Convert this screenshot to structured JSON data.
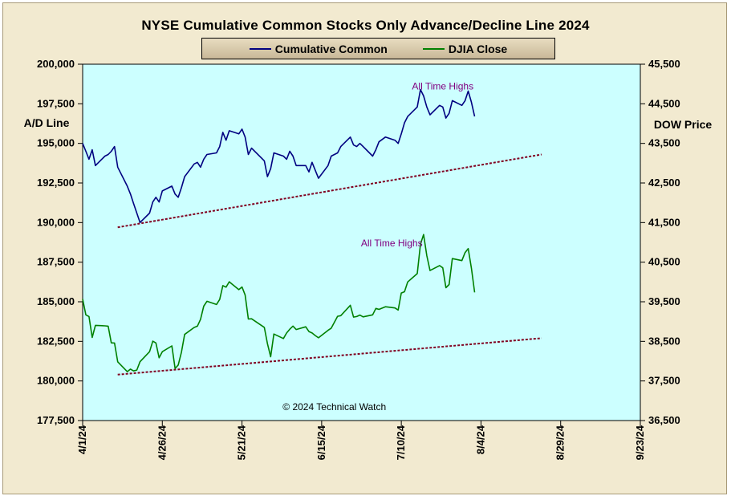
{
  "chart_data": {
    "type": "line",
    "title": "NYSE Cumulative  Common Stocks Only Advance/Decline  Line 2024",
    "ylabel_left": "A/D Line",
    "ylabel_right": "DOW Price",
    "left_axis": {
      "min": 177500,
      "max": 200000,
      "ticks": [
        "177,500",
        "180,000",
        "182,500",
        "185,000",
        "187,500",
        "190,000",
        "192,500",
        "195,000",
        "197,500",
        "200,000"
      ]
    },
    "right_axis": {
      "min": 36500,
      "max": 45500,
      "ticks": [
        "36,500",
        "37,500",
        "38,500",
        "39,500",
        "40,500",
        "41,500",
        "42,500",
        "43,500",
        "44,500",
        "45,500"
      ]
    },
    "x_axis": {
      "start": "2024-04-01",
      "end": "2024-09-23",
      "ticks": [
        "4/1/24",
        "4/26/24",
        "5/21/24",
        "6/15/24",
        "7/10/24",
        "8/4/24",
        "8/29/24",
        "9/23/24"
      ]
    },
    "series": [
      {
        "name": "Cumulative Common",
        "axis": "left",
        "color": "#000080",
        "points": [
          [
            "2024-04-01",
            195000
          ],
          [
            "2024-04-02",
            194500
          ],
          [
            "2024-04-03",
            194000
          ],
          [
            "2024-04-04",
            194600
          ],
          [
            "2024-04-05",
            193600
          ],
          [
            "2024-04-08",
            194200
          ],
          [
            "2024-04-09",
            194300
          ],
          [
            "2024-04-10",
            194500
          ],
          [
            "2024-04-11",
            194800
          ],
          [
            "2024-04-12",
            193500
          ],
          [
            "2024-04-15",
            192300
          ],
          [
            "2024-04-16",
            191800
          ],
          [
            "2024-04-17",
            191200
          ],
          [
            "2024-04-18",
            190600
          ],
          [
            "2024-04-19",
            190000
          ],
          [
            "2024-04-22",
            190600
          ],
          [
            "2024-04-23",
            191300
          ],
          [
            "2024-04-24",
            191600
          ],
          [
            "2024-04-25",
            191300
          ],
          [
            "2024-04-26",
            192000
          ],
          [
            "2024-04-29",
            192300
          ],
          [
            "2024-04-30",
            191800
          ],
          [
            "2024-05-01",
            191600
          ],
          [
            "2024-05-02",
            192200
          ],
          [
            "2024-05-03",
            192900
          ],
          [
            "2024-05-06",
            193700
          ],
          [
            "2024-05-07",
            193800
          ],
          [
            "2024-05-08",
            193500
          ],
          [
            "2024-05-09",
            194000
          ],
          [
            "2024-05-10",
            194300
          ],
          [
            "2024-05-13",
            194400
          ],
          [
            "2024-05-14",
            194800
          ],
          [
            "2024-05-15",
            195700
          ],
          [
            "2024-05-16",
            195200
          ],
          [
            "2024-05-17",
            195800
          ],
          [
            "2024-05-20",
            195600
          ],
          [
            "2024-05-21",
            195900
          ],
          [
            "2024-05-22",
            195400
          ],
          [
            "2024-05-23",
            194300
          ],
          [
            "2024-05-24",
            194700
          ],
          [
            "2024-05-28",
            193900
          ],
          [
            "2024-05-29",
            192900
          ],
          [
            "2024-05-30",
            193400
          ],
          [
            "2024-05-31",
            194400
          ],
          [
            "2024-06-03",
            194200
          ],
          [
            "2024-06-04",
            194000
          ],
          [
            "2024-06-05",
            194500
          ],
          [
            "2024-06-06",
            194200
          ],
          [
            "2024-06-07",
            193600
          ],
          [
            "2024-06-10",
            193600
          ],
          [
            "2024-06-11",
            193200
          ],
          [
            "2024-06-12",
            193800
          ],
          [
            "2024-06-13",
            193300
          ],
          [
            "2024-06-14",
            192800
          ],
          [
            "2024-06-17",
            193600
          ],
          [
            "2024-06-18",
            194200
          ],
          [
            "2024-06-20",
            194400
          ],
          [
            "2024-06-21",
            194800
          ],
          [
            "2024-06-24",
            195400
          ],
          [
            "2024-06-25",
            194900
          ],
          [
            "2024-06-26",
            194800
          ],
          [
            "2024-06-27",
            195000
          ],
          [
            "2024-06-28",
            194800
          ],
          [
            "2024-07-01",
            194200
          ],
          [
            "2024-07-02",
            194600
          ],
          [
            "2024-07-03",
            195100
          ],
          [
            "2024-07-05",
            195400
          ],
          [
            "2024-07-08",
            195200
          ],
          [
            "2024-07-09",
            195000
          ],
          [
            "2024-07-10",
            195600
          ],
          [
            "2024-07-11",
            196300
          ],
          [
            "2024-07-12",
            196700
          ],
          [
            "2024-07-15",
            197300
          ],
          [
            "2024-07-16",
            198400
          ],
          [
            "2024-07-17",
            198000
          ],
          [
            "2024-07-18",
            197300
          ],
          [
            "2024-07-19",
            196800
          ],
          [
            "2024-07-22",
            197400
          ],
          [
            "2024-07-23",
            197300
          ],
          [
            "2024-07-24",
            196600
          ],
          [
            "2024-07-25",
            196900
          ],
          [
            "2024-07-26",
            197700
          ],
          [
            "2024-07-29",
            197400
          ],
          [
            "2024-07-30",
            197700
          ],
          [
            "2024-07-31",
            198300
          ],
          [
            "2024-08-01",
            197600
          ],
          [
            "2024-08-02",
            196700
          ]
        ]
      },
      {
        "name": "DJIA Close",
        "axis": "right",
        "color": "#008000",
        "points": [
          [
            "2024-04-01",
            39567
          ],
          [
            "2024-04-02",
            39170
          ],
          [
            "2024-04-03",
            39127
          ],
          [
            "2024-04-04",
            38597
          ],
          [
            "2024-04-05",
            38904
          ],
          [
            "2024-04-08",
            38892
          ],
          [
            "2024-04-09",
            38884
          ],
          [
            "2024-04-10",
            38462
          ],
          [
            "2024-04-11",
            38459
          ],
          [
            "2024-04-12",
            37983
          ],
          [
            "2024-04-15",
            37735
          ],
          [
            "2024-04-16",
            37799
          ],
          [
            "2024-04-17",
            37753
          ],
          [
            "2024-04-18",
            37775
          ],
          [
            "2024-04-19",
            37986
          ],
          [
            "2024-04-22",
            38240
          ],
          [
            "2024-04-23",
            38504
          ],
          [
            "2024-04-24",
            38461
          ],
          [
            "2024-04-25",
            38086
          ],
          [
            "2024-04-26",
            38240
          ],
          [
            "2024-04-29",
            38386
          ],
          [
            "2024-04-30",
            37816
          ],
          [
            "2024-05-01",
            37903
          ],
          [
            "2024-05-02",
            38226
          ],
          [
            "2024-05-03",
            38676
          ],
          [
            "2024-05-06",
            38852
          ],
          [
            "2024-05-07",
            38884
          ],
          [
            "2024-05-08",
            39056
          ],
          [
            "2024-05-09",
            39388
          ],
          [
            "2024-05-10",
            39513
          ],
          [
            "2024-05-13",
            39432
          ],
          [
            "2024-05-14",
            39558
          ],
          [
            "2024-05-15",
            39908
          ],
          [
            "2024-05-16",
            39869
          ],
          [
            "2024-05-17",
            40004
          ],
          [
            "2024-05-20",
            39807
          ],
          [
            "2024-05-21",
            39873
          ],
          [
            "2024-05-22",
            39671
          ],
          [
            "2024-05-23",
            39065
          ],
          [
            "2024-05-24",
            39070
          ],
          [
            "2024-05-28",
            38853
          ],
          [
            "2024-05-29",
            38442
          ],
          [
            "2024-05-30",
            38112
          ],
          [
            "2024-05-31",
            38686
          ],
          [
            "2024-06-03",
            38571
          ],
          [
            "2024-06-04",
            38711
          ],
          [
            "2024-06-05",
            38807
          ],
          [
            "2024-06-06",
            38886
          ],
          [
            "2024-06-07",
            38799
          ],
          [
            "2024-06-10",
            38868
          ],
          [
            "2024-06-11",
            38747
          ],
          [
            "2024-06-12",
            38712
          ],
          [
            "2024-06-13",
            38647
          ],
          [
            "2024-06-14",
            38589
          ],
          [
            "2024-06-17",
            38778
          ],
          [
            "2024-06-18",
            38834
          ],
          [
            "2024-06-20",
            39134
          ],
          [
            "2024-06-21",
            39150
          ],
          [
            "2024-06-24",
            39411
          ],
          [
            "2024-06-25",
            39112
          ],
          [
            "2024-06-26",
            39127
          ],
          [
            "2024-06-27",
            39164
          ],
          [
            "2024-06-28",
            39118
          ],
          [
            "2024-07-01",
            39169
          ],
          [
            "2024-07-02",
            39331
          ],
          [
            "2024-07-03",
            39308
          ],
          [
            "2024-07-05",
            39375
          ],
          [
            "2024-07-08",
            39344
          ],
          [
            "2024-07-09",
            39291
          ],
          [
            "2024-07-10",
            39721
          ],
          [
            "2024-07-11",
            39753
          ],
          [
            "2024-07-12",
            40001
          ],
          [
            "2024-07-15",
            40212
          ],
          [
            "2024-07-16",
            40954
          ],
          [
            "2024-07-17",
            41198
          ],
          [
            "2024-07-18",
            40665
          ],
          [
            "2024-07-19",
            40288
          ],
          [
            "2024-07-22",
            40415
          ],
          [
            "2024-07-23",
            40358
          ],
          [
            "2024-07-24",
            39854
          ],
          [
            "2024-07-25",
            39935
          ],
          [
            "2024-07-26",
            40590
          ],
          [
            "2024-07-29",
            40540
          ],
          [
            "2024-07-30",
            40743
          ],
          [
            "2024-07-31",
            40843
          ],
          [
            "2024-08-01",
            40348
          ],
          [
            "2024-08-02",
            39737
          ]
        ]
      }
    ],
    "trendlines": [
      {
        "axis": "left",
        "color": "#800020",
        "start": [
          "2024-04-12",
          189700
        ],
        "end": [
          "2024-08-23",
          194300
        ]
      },
      {
        "axis": "left",
        "color": "#800020",
        "start": [
          "2024-04-12",
          180400
        ],
        "end": [
          "2024-08-23",
          182700
        ]
      }
    ],
    "annotations": [
      {
        "text": "All Time Highs",
        "x": "2024-07-23",
        "y": 198400,
        "axis": "left",
        "color": "#800080"
      },
      {
        "text": "All Time Highs",
        "x": "2024-07-07",
        "y": 40900,
        "axis": "right",
        "color": "#800080"
      },
      {
        "text": "© 2024  Technical Watch",
        "x": "2024-06-19",
        "y": 178150,
        "axis": "left",
        "color": "#000000"
      }
    ],
    "plot_background": "#ccffff",
    "grid": false,
    "legend_position": "top-center"
  }
}
